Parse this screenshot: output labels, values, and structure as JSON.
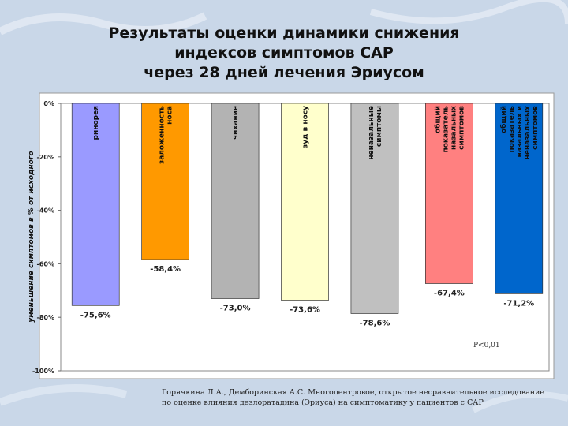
{
  "title": {
    "line1": "Результаты оценки динамики снижения",
    "line2": "индексов симптомов САР",
    "line3": "через 28 дней лечения Эриусом"
  },
  "chart_data": {
    "type": "bar",
    "ylabel": "уменьшение симптомов в % от исходного",
    "ylim": [
      -100,
      0
    ],
    "yticks": [
      0,
      -20,
      -40,
      -60,
      -80,
      -100
    ],
    "ytick_labels": [
      "0%",
      "-20%",
      "-40%",
      "-60%",
      "-80%",
      "-100%"
    ],
    "grid": false,
    "categories": [
      "ринорея",
      "заложенность носа",
      "чихание",
      "зуд в носу",
      "неназальные симптомы",
      "общий показатель назальных симптомов",
      "общий показатель назальных и неназальных симптомов"
    ],
    "category_lines": [
      [
        "ринорея"
      ],
      [
        "заложенность",
        "носа"
      ],
      [
        "чихание"
      ],
      [
        "зуд в носу"
      ],
      [
        "неназальные",
        "симптомы"
      ],
      [
        "общий",
        "показатель",
        "назальных",
        "симптомов"
      ],
      [
        "общий",
        "показатель",
        "назальных и",
        "неназальных",
        "симптомов"
      ]
    ],
    "values": [
      -75.6,
      -58.4,
      -73.0,
      -73.6,
      -78.6,
      -67.4,
      -71.2
    ],
    "value_labels": [
      "-75,6%",
      "-58,4%",
      "-73,0%",
      "-73,6%",
      "-78,6%",
      "-67,4%",
      "-71,2%"
    ],
    "colors": [
      "#9a9aff",
      "#ff9900",
      "#b3b3b3",
      "#ffffcc",
      "#c0c0c0",
      "#ff8080",
      "#0066cc"
    ],
    "annotation": "P<0,01"
  },
  "caption": {
    "line1": "Горячкина Л.А., Демборинская А.С. Многоцентровое, открытое несравнительное исследование",
    "line2": "по оценке влияния дезлоратадина (Эриуса) на симптоматику у пациентов с САР"
  }
}
